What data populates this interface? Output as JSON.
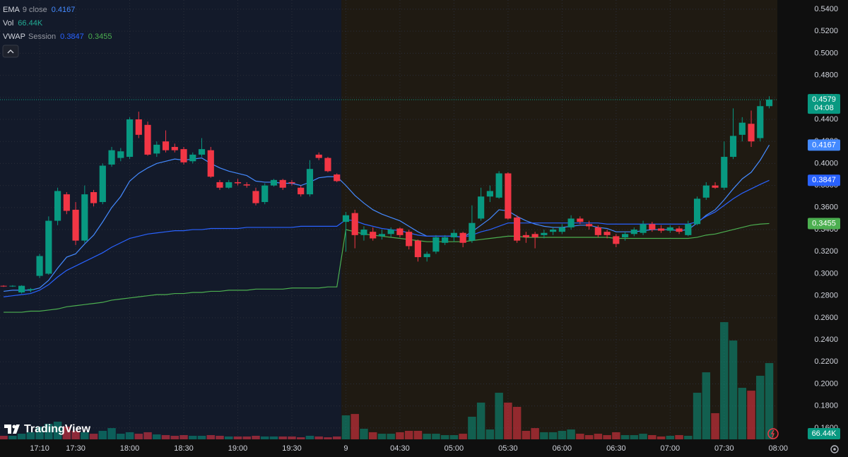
{
  "branding": "TradingView",
  "chart_data": {
    "type": "candlestick",
    "countdown": "04:08",
    "up_color": "#089981",
    "down_color": "#f23645",
    "xlim": [
      -0.4,
      85.9
    ],
    "ylim": [
      0.1497,
      0.5483
    ],
    "grid": true,
    "xticks": [
      {
        "value": 4,
        "label": "17:10"
      },
      {
        "value": 8,
        "label": "17:30"
      },
      {
        "value": 14,
        "label": "18:00"
      },
      {
        "value": 20,
        "label": "18:30"
      },
      {
        "value": 26,
        "label": "19:00"
      },
      {
        "value": 32,
        "label": "19:30"
      },
      {
        "value": 38,
        "label": "9"
      },
      {
        "value": 44,
        "label": "04:30"
      },
      {
        "value": 50,
        "label": "05:00"
      },
      {
        "value": 56,
        "label": "05:30"
      },
      {
        "value": 62,
        "label": "06:00"
      },
      {
        "value": 68,
        "label": "06:30"
      },
      {
        "value": 74,
        "label": "07:00"
      },
      {
        "value": 80,
        "label": "07:30"
      },
      {
        "value": 86,
        "label": "08:00"
      }
    ],
    "yticks": [
      {
        "value": 0.16,
        "label": "0.1600"
      },
      {
        "value": 0.18,
        "label": "0.1800"
      },
      {
        "value": 0.2,
        "label": "0.2000"
      },
      {
        "value": 0.22,
        "label": "0.2200"
      },
      {
        "value": 0.24,
        "label": "0.2400"
      },
      {
        "value": 0.26,
        "label": "0.2600"
      },
      {
        "value": 0.28,
        "label": "0.2800"
      },
      {
        "value": 0.3,
        "label": "0.3000"
      },
      {
        "value": 0.32,
        "label": "0.3200"
      },
      {
        "value": 0.34,
        "label": "0.3400"
      },
      {
        "value": 0.36,
        "label": "0.3600"
      },
      {
        "value": 0.38,
        "label": "0.3800"
      },
      {
        "value": 0.4,
        "label": "0.4000"
      },
      {
        "value": 0.42,
        "label": "0.4200"
      },
      {
        "value": 0.44,
        "label": "0.4400"
      },
      {
        "value": 0.46,
        "label": "0.4600"
      },
      {
        "value": 0.48,
        "label": "0.4800"
      },
      {
        "value": 0.5,
        "label": "0.5000"
      },
      {
        "value": 0.52,
        "label": "0.5200"
      },
      {
        "value": 0.54,
        "label": "0.5400"
      }
    ],
    "candles": {
      "open": [
        0.289,
        0.2885,
        0.283,
        0.285,
        0.298,
        0.3,
        0.348,
        0.372,
        0.358,
        0.33,
        0.374,
        0.365,
        0.399,
        0.405,
        0.406,
        0.44,
        0.435,
        0.409,
        0.42,
        0.415,
        0.413,
        0.402,
        0.408,
        0.412,
        0.383,
        0.378,
        0.383,
        0.381,
        0.375,
        0.365,
        0.38,
        0.385,
        0.383,
        0.378,
        0.372,
        0.408,
        0.405,
        0.39,
        0.347,
        0.355,
        0.335,
        0.338,
        0.334,
        0.336,
        0.341,
        0.338,
        0.33,
        0.315,
        0.32,
        0.328,
        0.333,
        0.337,
        0.33,
        0.35,
        0.37,
        0.369,
        0.391,
        0.351,
        0.335,
        0.336,
        0.335,
        0.338,
        0.338,
        0.342,
        0.35,
        0.345,
        0.342,
        0.338,
        0.334,
        0.333,
        0.336,
        0.337,
        0.345,
        0.341,
        0.339,
        0.341,
        0.335,
        0.345,
        0.369,
        0.38,
        0.378,
        0.406,
        0.426,
        0.436,
        0.423,
        0.452
      ],
      "high": [
        0.2895,
        0.2895,
        0.2895,
        0.287,
        0.318,
        0.352,
        0.378,
        0.374,
        0.365,
        0.38,
        0.376,
        0.4,
        0.415,
        0.414,
        0.442,
        0.447,
        0.438,
        0.42,
        0.43,
        0.418,
        0.415,
        0.41,
        0.423,
        0.415,
        0.385,
        0.385,
        0.386,
        0.383,
        0.378,
        0.382,
        0.386,
        0.386,
        0.385,
        0.38,
        0.403,
        0.41,
        0.406,
        0.391,
        0.356,
        0.358,
        0.343,
        0.342,
        0.34,
        0.342,
        0.342,
        0.34,
        0.331,
        0.32,
        0.335,
        0.335,
        0.34,
        0.338,
        0.362,
        0.378,
        0.38,
        0.393,
        0.392,
        0.353,
        0.338,
        0.338,
        0.34,
        0.342,
        0.345,
        0.353,
        0.352,
        0.348,
        0.344,
        0.34,
        0.336,
        0.338,
        0.342,
        0.348,
        0.347,
        0.344,
        0.344,
        0.343,
        0.348,
        0.37,
        0.383,
        0.383,
        0.42,
        0.45,
        0.442,
        0.448,
        0.457,
        0.461
      ],
      "low": [
        0.288,
        0.288,
        0.282,
        0.283,
        0.296,
        0.299,
        0.344,
        0.354,
        0.326,
        0.328,
        0.361,
        0.363,
        0.397,
        0.402,
        0.404,
        0.423,
        0.407,
        0.406,
        0.41,
        0.41,
        0.399,
        0.4,
        0.406,
        0.387,
        0.376,
        0.377,
        0.38,
        0.378,
        0.362,
        0.363,
        0.379,
        0.376,
        0.38,
        0.37,
        0.37,
        0.403,
        0.392,
        0.383,
        0.32,
        0.323,
        0.33,
        0.33,
        0.331,
        0.333,
        0.333,
        0.322,
        0.311,
        0.311,
        0.318,
        0.326,
        0.329,
        0.324,
        0.328,
        0.348,
        0.365,
        0.368,
        0.349,
        0.328,
        0.328,
        0.323,
        0.332,
        0.335,
        0.336,
        0.34,
        0.345,
        0.34,
        0.333,
        0.332,
        0.324,
        0.33,
        0.334,
        0.335,
        0.338,
        0.337,
        0.337,
        0.336,
        0.334,
        0.344,
        0.367,
        0.377,
        0.376,
        0.404,
        0.42,
        0.415,
        0.42,
        0.45
      ],
      "close": [
        0.2885,
        0.289,
        0.289,
        0.286,
        0.316,
        0.348,
        0.375,
        0.357,
        0.33,
        0.372,
        0.364,
        0.398,
        0.412,
        0.411,
        0.44,
        0.426,
        0.408,
        0.417,
        0.412,
        0.412,
        0.401,
        0.408,
        0.413,
        0.388,
        0.378,
        0.383,
        0.382,
        0.38,
        0.364,
        0.38,
        0.385,
        0.378,
        0.382,
        0.372,
        0.395,
        0.405,
        0.393,
        0.384,
        0.353,
        0.335,
        0.34,
        0.332,
        0.336,
        0.34,
        0.335,
        0.325,
        0.315,
        0.318,
        0.333,
        0.333,
        0.337,
        0.328,
        0.346,
        0.37,
        0.375,
        0.391,
        0.35,
        0.33,
        0.333,
        0.333,
        0.337,
        0.34,
        0.342,
        0.35,
        0.347,
        0.343,
        0.335,
        0.335,
        0.327,
        0.336,
        0.34,
        0.345,
        0.34,
        0.339,
        0.342,
        0.338,
        0.345,
        0.368,
        0.38,
        0.378,
        0.406,
        0.425,
        0.437,
        0.42,
        0.452,
        0.4579
      ]
    },
    "volume": {
      "name": "Vol",
      "vlim": [
        0,
        160000
      ],
      "values": [
        3100,
        3100,
        4900,
        6200,
        11100,
        13500,
        15400,
        11100,
        7400,
        6200,
        4900,
        7400,
        9800,
        4900,
        6200,
        4900,
        6200,
        4300,
        3700,
        3100,
        3700,
        3100,
        3100,
        3700,
        3100,
        2500,
        2500,
        2500,
        3100,
        2500,
        2500,
        2500,
        2500,
        1800,
        3100,
        2500,
        1800,
        2500,
        20900,
        22100,
        9200,
        6200,
        4900,
        4900,
        6200,
        7400,
        7400,
        4900,
        4900,
        3700,
        3700,
        4900,
        19700,
        32000,
        8600,
        40600,
        32000,
        28300,
        7400,
        9800,
        6200,
        6200,
        7400,
        8600,
        4900,
        3700,
        4900,
        3700,
        6200,
        3700,
        3700,
        4900,
        3700,
        2500,
        3100,
        3700,
        3100,
        40600,
        58400,
        22800,
        102100,
        86100,
        44900,
        42400,
        55400,
        66440
      ],
      "value_labels": [
        null,
        null,
        null,
        null,
        null,
        null,
        null,
        null,
        null,
        null,
        null,
        null,
        null,
        null,
        null,
        null,
        null,
        null,
        null,
        null,
        null,
        null,
        null,
        null,
        null,
        null,
        null,
        null,
        null,
        null,
        null,
        null,
        null,
        null,
        null,
        null,
        null,
        null,
        null,
        null,
        null,
        null,
        null,
        null,
        null,
        null,
        null,
        null,
        null,
        null,
        null,
        null,
        null,
        null,
        null,
        null,
        null,
        null,
        null,
        null,
        null,
        null,
        null,
        null,
        null,
        null,
        null,
        null,
        null,
        null,
        null,
        null,
        null,
        null,
        null,
        null,
        null,
        null,
        null,
        null,
        null,
        null,
        null,
        null,
        null,
        "66.44K"
      ]
    },
    "series": [
      {
        "name": "EMA",
        "params": "9 close",
        "color": "#448aff",
        "values": [
          0.284,
          0.285,
          0.285,
          0.285,
          0.287,
          0.294,
          0.305,
          0.315,
          0.318,
          0.327,
          0.335,
          0.347,
          0.36,
          0.37,
          0.384,
          0.391,
          0.396,
          0.4,
          0.402,
          0.404,
          0.403,
          0.404,
          0.405,
          0.4,
          0.396,
          0.393,
          0.391,
          0.389,
          0.384,
          0.383,
          0.383,
          0.382,
          0.382,
          0.38,
          0.383,
          0.387,
          0.388,
          0.388,
          0.38,
          0.371,
          0.364,
          0.358,
          0.354,
          0.351,
          0.348,
          0.343,
          0.338,
          0.334,
          0.334,
          0.334,
          0.334,
          0.333,
          0.338,
          0.344,
          0.35,
          0.358,
          0.357,
          0.352,
          0.348,
          0.345,
          0.343,
          0.342,
          0.342,
          0.343,
          0.344,
          0.344,
          0.342,
          0.341,
          0.338,
          0.338,
          0.338,
          0.339,
          0.34,
          0.34,
          0.34,
          0.339,
          0.34,
          0.346,
          0.353,
          0.358,
          0.367,
          0.377,
          0.386,
          0.392,
          0.403,
          0.4167
        ]
      },
      {
        "name": "VWAP",
        "params": "Session",
        "color": "#2962ff",
        "values": [
          0.279,
          0.28,
          0.281,
          0.282,
          0.285,
          0.29,
          0.297,
          0.303,
          0.307,
          0.311,
          0.315,
          0.319,
          0.324,
          0.328,
          0.332,
          0.334,
          0.336,
          0.337,
          0.338,
          0.339,
          0.339,
          0.34,
          0.34,
          0.341,
          0.341,
          0.341,
          0.341,
          0.342,
          0.342,
          0.342,
          0.342,
          0.342,
          0.342,
          0.343,
          0.343,
          0.343,
          0.343,
          0.343,
          0.349,
          0.348,
          0.345,
          0.343,
          0.341,
          0.34,
          0.339,
          0.337,
          0.335,
          0.334,
          0.334,
          0.334,
          0.334,
          0.333,
          0.335,
          0.338,
          0.34,
          0.343,
          0.346,
          0.346,
          0.346,
          0.346,
          0.346,
          0.346,
          0.346,
          0.346,
          0.346,
          0.346,
          0.346,
          0.345,
          0.345,
          0.345,
          0.345,
          0.345,
          0.345,
          0.345,
          0.345,
          0.345,
          0.345,
          0.347,
          0.352,
          0.356,
          0.362,
          0.368,
          0.373,
          0.377,
          0.381,
          0.3847
        ]
      },
      {
        "color": "#4caf50",
        "values": [
          0.265,
          0.265,
          0.265,
          0.266,
          0.266,
          0.267,
          0.268,
          0.27,
          0.271,
          0.272,
          0.273,
          0.274,
          0.276,
          0.277,
          0.278,
          0.279,
          0.28,
          0.281,
          0.281,
          0.282,
          0.282,
          0.283,
          0.283,
          0.284,
          0.284,
          0.285,
          0.285,
          0.285,
          0.286,
          0.286,
          0.286,
          0.286,
          0.287,
          0.287,
          0.287,
          0.287,
          0.288,
          0.288,
          0.34,
          0.338,
          0.336,
          0.335,
          0.334,
          0.333,
          0.332,
          0.331,
          0.33,
          0.329,
          0.329,
          0.329,
          0.329,
          0.329,
          0.33,
          0.331,
          0.332,
          0.333,
          0.334,
          0.334,
          0.333,
          0.333,
          0.333,
          0.333,
          0.333,
          0.333,
          0.333,
          0.333,
          0.333,
          0.333,
          0.332,
          0.332,
          0.332,
          0.332,
          0.332,
          0.332,
          0.332,
          0.332,
          0.332,
          0.333,
          0.335,
          0.336,
          0.338,
          0.34,
          0.342,
          0.344,
          0.345,
          0.3455
        ]
      }
    ]
  }
}
